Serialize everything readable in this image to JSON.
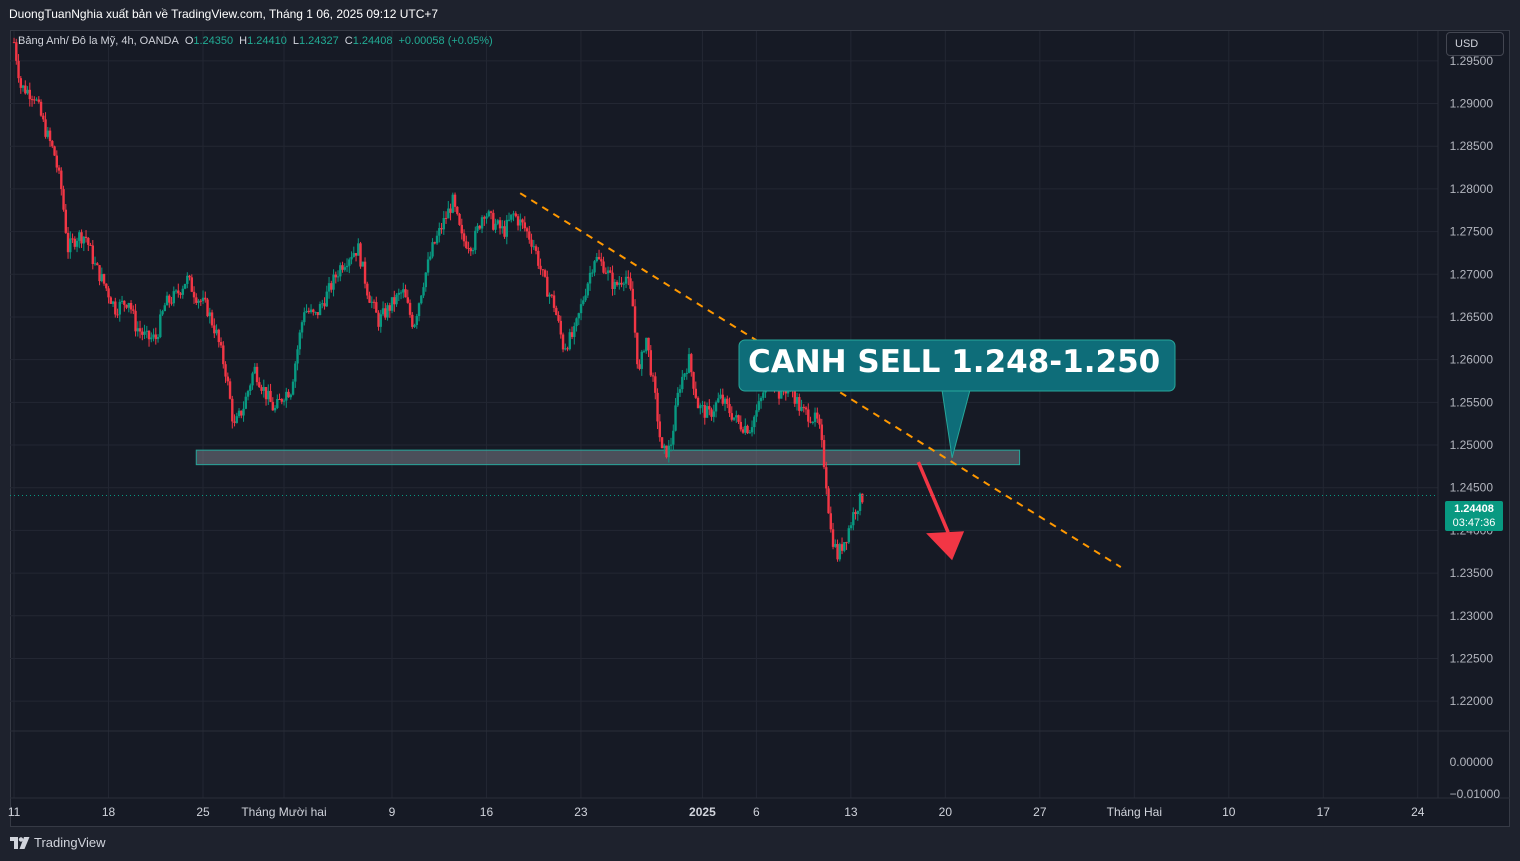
{
  "header": {
    "published_by": "DuongTuanNghia xuất bản về TradingView.com, Tháng 1 06, 2025 09:12 UTC+7"
  },
  "legend": {
    "symbol": "Bảng Anh/ Đô la Mỹ, 4h, OANDA",
    "open_label": "O",
    "open": "1.24350",
    "high_label": "H",
    "high": "1.24410",
    "low_label": "L",
    "low": "1.24327",
    "close_label": "C",
    "close": "1.24408",
    "change": "+0.00058 (+0.05%)"
  },
  "currency_button": "USD",
  "current_price": {
    "price": "1.24408",
    "countdown": "03:47:36"
  },
  "annotation": {
    "text": "CANH SELL 1.248-1.250"
  },
  "branding": {
    "logo_text": "TradingView"
  },
  "colors": {
    "up": "#089981",
    "down": "#f23645",
    "trendline": "#ff9800",
    "zone_fill": "#787b86",
    "zone_border": "#26a69a",
    "callout": "#0e6d79",
    "arrow": "#f23645"
  },
  "chart_data": {
    "type": "candlestick",
    "instrument": "GBP/USD",
    "timeframe": "4h",
    "y_ticks": [
      "1.29500",
      "1.29000",
      "1.28500",
      "1.28000",
      "1.27500",
      "1.27000",
      "1.26500",
      "1.26000",
      "1.25500",
      "1.25000",
      "1.24500",
      "1.24000",
      "1.23500",
      "1.23000",
      "1.22500",
      "1.22000"
    ],
    "ylim": [
      1.2165,
      1.2985
    ],
    "x_ticks": [
      "11",
      "18",
      "25",
      "Tháng Mười hai",
      "9",
      "16",
      "23",
      "2025",
      "6",
      "13",
      "20",
      "27",
      "Tháng Hai",
      "10",
      "17",
      "24"
    ],
    "x_tick_days": [
      0,
      7,
      14,
      20,
      28,
      35,
      42,
      51,
      55,
      62,
      69,
      76,
      83,
      90,
      97,
      104
    ],
    "xlim": [
      -0.3,
      105.5
    ],
    "close_path": [
      [
        0,
        1.2972
      ],
      [
        0.5,
        1.292
      ],
      [
        1.5,
        1.291
      ],
      [
        2.3,
        1.287
      ],
      [
        3,
        1.284
      ],
      [
        3.5,
        1.28
      ],
      [
        4,
        1.273
      ],
      [
        4.7,
        1.2745
      ],
      [
        5.3,
        1.2745
      ],
      [
        6,
        1.271
      ],
      [
        6.8,
        1.2685
      ],
      [
        7.5,
        1.266
      ],
      [
        8.5,
        1.267
      ],
      [
        9,
        1.264
      ],
      [
        9.8,
        1.2625
      ],
      [
        10.5,
        1.2625
      ],
      [
        11.2,
        1.2665
      ],
      [
        12,
        1.2675
      ],
      [
        12.8,
        1.2695
      ],
      [
        13.5,
        1.2675
      ],
      [
        14.3,
        1.266
      ],
      [
        15,
        1.263
      ],
      [
        15.7,
        1.2585
      ],
      [
        16.3,
        1.252
      ],
      [
        17,
        1.2545
      ],
      [
        17.8,
        1.259
      ],
      [
        18.5,
        1.2565
      ],
      [
        19.3,
        1.254
      ],
      [
        20,
        1.256
      ],
      [
        20.5,
        1.2565
      ],
      [
        21.5,
        1.266
      ],
      [
        22.3,
        1.265
      ],
      [
        23.3,
        1.268
      ],
      [
        24.2,
        1.271
      ],
      [
        25,
        1.2725
      ],
      [
        25.5,
        1.273
      ],
      [
        26.2,
        1.268
      ],
      [
        27,
        1.2645
      ],
      [
        28,
        1.2665
      ],
      [
        28.8,
        1.268
      ],
      [
        29.6,
        1.264
      ],
      [
        30.3,
        1.269
      ],
      [
        31,
        1.273
      ],
      [
        31.8,
        1.276
      ],
      [
        32.5,
        1.2785
      ],
      [
        33.2,
        1.274
      ],
      [
        34,
        1.2735
      ],
      [
        34.8,
        1.2775
      ],
      [
        35.5,
        1.276
      ],
      [
        36.3,
        1.275
      ],
      [
        37,
        1.277
      ],
      [
        37.8,
        1.2755
      ],
      [
        38.5,
        1.2735
      ],
      [
        39.3,
        1.269
      ],
      [
        40,
        1.2665
      ],
      [
        40.7,
        1.2615
      ],
      [
        41.5,
        1.263
      ],
      [
        42.3,
        1.268
      ],
      [
        43,
        1.272
      ],
      [
        43.7,
        1.271
      ],
      [
        44.5,
        1.2685
      ],
      [
        45.3,
        1.27
      ],
      [
        45.8,
        1.267
      ],
      [
        46.3,
        1.258
      ],
      [
        46.8,
        1.263
      ],
      [
        47.5,
        1.2555
      ],
      [
        48,
        1.249
      ],
      [
        48.6,
        1.2495
      ],
      [
        49.3,
        1.257
      ],
      [
        50,
        1.26
      ],
      [
        50.7,
        1.2545
      ],
      [
        51.5,
        1.2535
      ],
      [
        52.3,
        1.2555
      ],
      [
        53,
        1.254
      ],
      [
        53.7,
        1.2525
      ],
      [
        54.5,
        1.252
      ],
      [
        55.3,
        1.255
      ],
      [
        56,
        1.259
      ],
      [
        56.7,
        1.256
      ],
      [
        57.5,
        1.257
      ],
      [
        58.3,
        1.254
      ],
      [
        59,
        1.2535
      ],
      [
        59.6,
        1.2525
      ],
      [
        60.1,
        1.247
      ],
      [
        60.5,
        1.24
      ],
      [
        61,
        1.237
      ],
      [
        61.7,
        1.2395
      ],
      [
        62.3,
        1.2425
      ],
      [
        62.9,
        1.244
      ]
    ],
    "zone": {
      "from_day": 13.5,
      "to_day": 74.5,
      "low": 1.2477,
      "high": 1.2494
    },
    "trendline": {
      "start": [
        37.5,
        1.2795
      ],
      "end": [
        82.0,
        1.2357
      ]
    },
    "callout_anchor": [
      69.5,
      1.2485
    ],
    "arrow": {
      "from": [
        67.0,
        1.248
      ],
      "to": [
        69.5,
        1.2365
      ]
    },
    "current_price_value": 1.24408
  }
}
